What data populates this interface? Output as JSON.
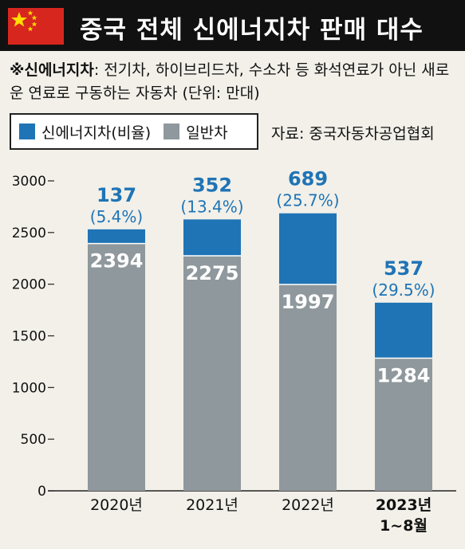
{
  "header": {
    "title": "중국 전체 신에너지차 판매 대수",
    "flag_icon": "china-flag-icon"
  },
  "note": {
    "bold": "※신에너지차",
    "text": ": 전기차, 하이브리드차, 수소차 등 화석연료가 아닌 새로운 연료로 구동하는 자동차 (단위: 만대)"
  },
  "legend": {
    "nev": "신에너지차(비율)",
    "regular": "일반차"
  },
  "source": "자료: 중국자동차공업협회",
  "colors": {
    "nev": "#1f74b5",
    "regular": "#8f989c",
    "header": "#111111",
    "flag": "#d7261e",
    "star": "#ffde00"
  },
  "chart_data": {
    "type": "bar",
    "stacked": true,
    "categories": [
      "2020년",
      "2021년",
      "2022년",
      "2023년|1~8월"
    ],
    "series": [
      {
        "name": "일반차",
        "values": [
          2394,
          2275,
          1997,
          1284
        ]
      },
      {
        "name": "신에너지차(비율)",
        "values": [
          137,
          352,
          689,
          537
        ]
      }
    ],
    "nev_share_labels": [
      "(5.4%)",
      "(13.4%)",
      "(25.7%)",
      "(29.5%)"
    ],
    "yticks": [
      0,
      500,
      1000,
      1500,
      2000,
      2500,
      3000
    ],
    "ylim": [
      0,
      3000
    ],
    "xlabel": "",
    "ylabel": "",
    "legend_position": "top-left",
    "grid": false
  }
}
